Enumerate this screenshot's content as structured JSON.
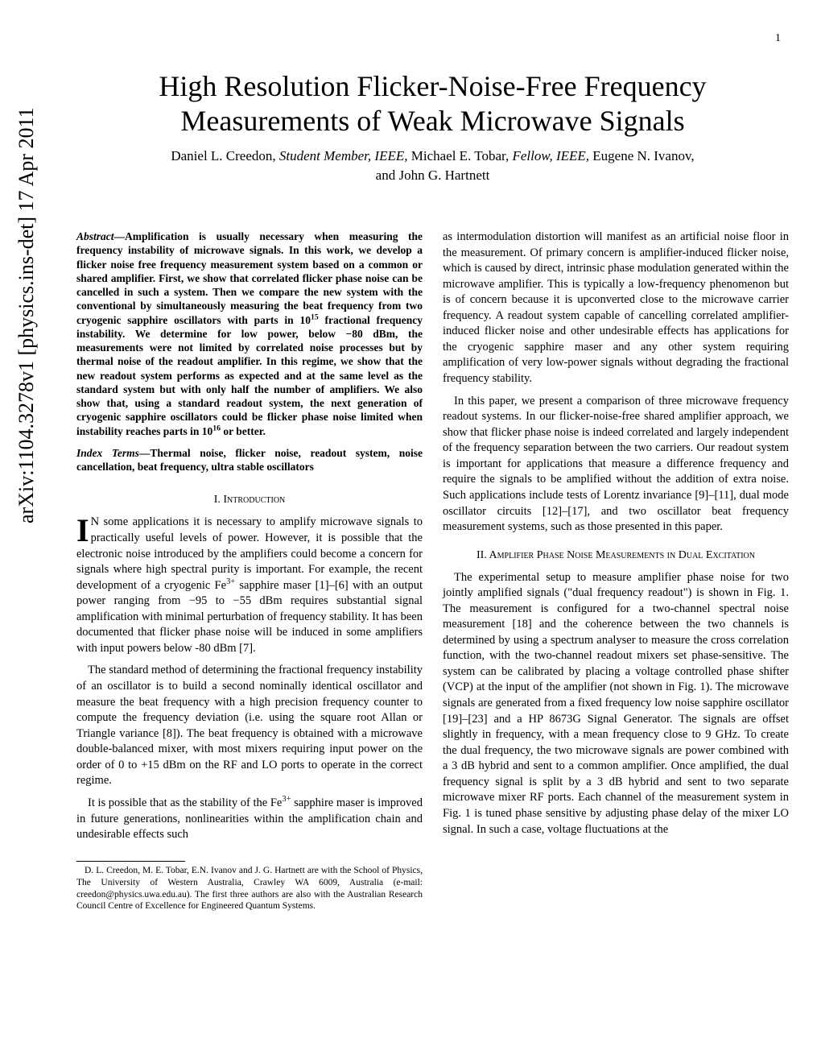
{
  "page_number": "1",
  "arxiv": "arXiv:1104.3278v1  [physics.ins-det]  17 Apr 2011",
  "title_line1": "High Resolution Flicker-Noise-Free Frequency",
  "title_line2": "Measurements of Weak Microwave Signals",
  "authors_line1_a": "Daniel L. Creedon, ",
  "authors_line1_b": "Student Member, IEEE,",
  "authors_line1_c": " Michael E. Tobar, ",
  "authors_line1_d": "Fellow, IEEE,",
  "authors_line1_e": " Eugene N. Ivanov,",
  "authors_line2": "and John G. Hartnett",
  "abstract_label": "Abstract",
  "abstract_body": "—Amplification is usually necessary when measuring the frequency instability of microwave signals. In this work, we develop a flicker noise free frequency measurement system based on a common or shared amplifier. First, we show that correlated flicker phase noise can be cancelled in such a system. Then we compare the new system with the conventional by simultaneously measuring the beat frequency from two cryogenic sapphire oscillators with parts in 10",
  "abstract_sup1": "15",
  "abstract_body2": " fractional frequency instability. We determine for low power, below −80 dBm, the measurements were not limited by correlated noise processes but by thermal noise of the readout amplifier. In this regime, we show that the new readout system performs as expected and at the same level as the standard system but with only half the number of amplifiers. We also show that, using a standard readout system, the next generation of cryogenic sapphire oscillators could be flicker phase noise limited when instability reaches parts in 10",
  "abstract_sup2": "16",
  "abstract_body3": " or better.",
  "index_label": "Index Terms",
  "index_body": "—Thermal noise, flicker noise, readout system, noise cancellation, beat frequency, ultra stable oscillators",
  "sec1_heading": "I.  Introduction",
  "sec1_p1_a": "N some applications it is necessary to amplify microwave signals to practically useful levels of power. However, it is possible that the electronic noise introduced by the amplifiers could become a concern for signals where high spectral purity is important. For example, the recent development of a cryogenic Fe",
  "sec1_p1_sup": "3+",
  "sec1_p1_b": " sapphire maser [1]–[6] with an output power ranging from −95 to −55 dBm requires substantial signal amplification with minimal perturbation of frequency stability. It has been documented that flicker phase noise will be induced in some amplifiers with input powers below -80 dBm [7].",
  "sec1_p2": "The standard method of determining the fractional frequency instability of an oscillator is to build a second nominally identical oscillator and measure the beat frequency with a high precision frequency counter to compute the frequency deviation (i.e. using the square root Allan or Triangle variance [8]). The beat frequency is obtained with a microwave double-balanced mixer, with most mixers requiring input power on the order of 0 to +15 dBm on the RF and LO ports to operate in the correct regime.",
  "sec1_p3_a": "It is possible that as the stability of the Fe",
  "sec1_p3_sup": "3+",
  "sec1_p3_b": " sapphire maser is improved in future generations, nonlinearities within the amplification chain and undesirable effects such",
  "footnote": "D. L. Creedon, M. E. Tobar, E.N. Ivanov and J. G. Hartnett are with the School of Physics, The University of Western Australia, Crawley WA 6009, Australia (e-mail: creedon@physics.uwa.edu.au). The first three authors are also with the Australian Research Council Centre of Excellence for Engineered Quantum Systems.",
  "col2_p1": "as intermodulation distortion will manifest as an artificial noise floor in the measurement. Of primary concern is amplifier-induced flicker noise, which is caused by direct, intrinsic phase modulation generated within the microwave amplifier. This is typically a low-frequency phenomenon but is of concern because it is upconverted close to the microwave carrier frequency. A readout system capable of cancelling correlated amplifier-induced flicker noise and other undesirable effects has applications for the cryogenic sapphire maser and any other system requiring amplification of very low-power signals without degrading the fractional frequency stability.",
  "col2_p2": "In this paper, we present a comparison of three microwave frequency readout systems. In our flicker-noise-free shared amplifier approach, we show that flicker phase noise is indeed correlated and largely independent of the frequency separation between the two carriers. Our readout system is important for applications that measure a difference frequency and require the signals to be amplified without the addition of extra noise. Such applications include tests of Lorentz invariance [9]–[11], dual mode oscillator circuits [12]–[17], and two oscillator beat frequency measurement systems, such as those presented in this paper.",
  "sec2_heading": "II.  Amplifier Phase Noise Measurements in Dual Excitation",
  "col2_p3": "The experimental setup to measure amplifier phase noise for two jointly amplified signals (\"dual frequency readout\") is shown in Fig. 1. The measurement is configured for a two-channel spectral noise measurement [18] and the coherence between the two channels is determined by using a spectrum analyser to measure the cross correlation function, with the two-channel readout mixers set phase-sensitive. The system can be calibrated by placing a voltage controlled phase shifter (VCP) at the input of the amplifier (not shown in Fig. 1). The microwave signals are generated from a fixed frequency low noise sapphire oscillator [19]–[23] and a HP 8673G Signal Generator. The signals are offset slightly in frequency, with a mean frequency close to 9 GHz. To create the dual frequency, the two microwave signals are power combined with a 3 dB hybrid and sent to a common amplifier. Once amplified, the dual frequency signal is split by a 3 dB hybrid and sent to two separate microwave mixer RF ports. Each channel of the measurement system in Fig. 1 is tuned phase sensitive by adjusting phase delay of the mixer LO signal. In such a case, voltage fluctuations at the"
}
